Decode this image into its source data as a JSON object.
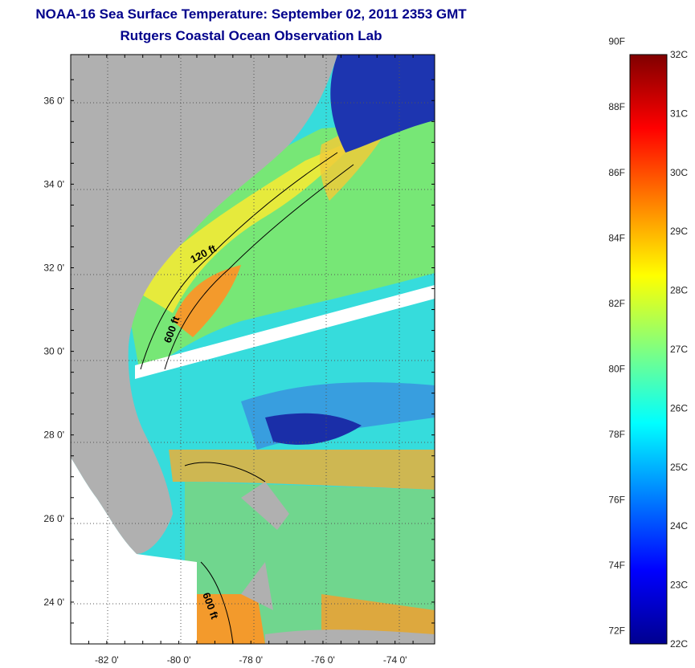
{
  "header": {
    "title": "NOAA-16 Sea Surface Temperature:  September 02, 2011 2353 GMT",
    "subtitle": "Rutgers Coastal Ocean Observation Lab"
  },
  "map": {
    "lat_ticks": [
      {
        "value": 36,
        "label": "36 0'"
      },
      {
        "value": 34,
        "label": "34 0'"
      },
      {
        "value": 32,
        "label": "32 0'"
      },
      {
        "value": 30,
        "label": "30 0'"
      },
      {
        "value": 28,
        "label": "28 0'"
      },
      {
        "value": 26,
        "label": "26 0'"
      },
      {
        "value": 24,
        "label": "24 0'"
      }
    ],
    "lon_ticks": [
      {
        "value": -82,
        "label": "-82 0'"
      },
      {
        "value": -80,
        "label": "-80 0'"
      },
      {
        "value": -78,
        "label": "-78 0'"
      },
      {
        "value": -76,
        "label": "-76 0'"
      },
      {
        "value": -74,
        "label": "-74 0'"
      }
    ],
    "lat_range": [
      23,
      37.1
    ],
    "lon_range": [
      -83,
      -72.9
    ],
    "isobaths": [
      {
        "label": "120 ft"
      },
      {
        "label": "600 ft"
      },
      {
        "label": "600 ft"
      }
    ],
    "colors": {
      "land": "#b0b0b0",
      "warm": "#f39a2c",
      "mid": "#f0e83a",
      "cool": "#2fe0e8",
      "cold": "#1a2ea8"
    }
  },
  "colorbar": {
    "fahrenheit": [
      "90F",
      "88F",
      "86F",
      "84F",
      "82F",
      "80F",
      "78F",
      "76F",
      "74F",
      "72F"
    ],
    "celsius": [
      "32C",
      "31C",
      "30C",
      "29C",
      "28C",
      "27C",
      "26C",
      "25C",
      "24C",
      "23C",
      "22C"
    ],
    "range_c": [
      22,
      32
    ],
    "stops": [
      "#00008f",
      "#0000ff",
      "#0080ff",
      "#00ffff",
      "#80ff80",
      "#ffff00",
      "#ff8000",
      "#ff0000",
      "#800000"
    ]
  }
}
